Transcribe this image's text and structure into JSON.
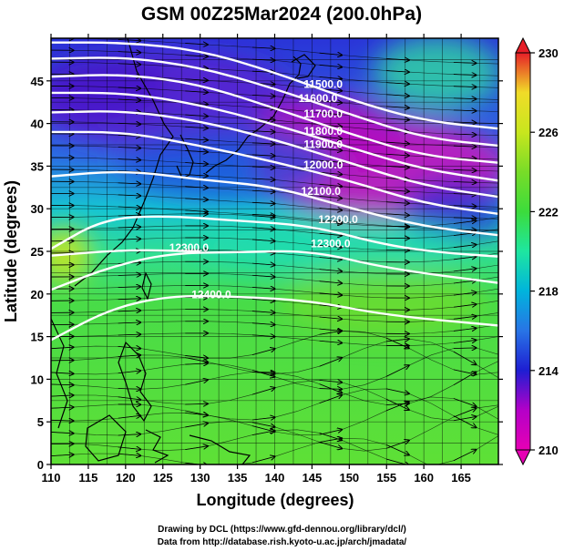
{
  "chart_data": {
    "type": "heatmap",
    "title": "GSM 00Z25Mar2024 (200.0hPa)",
    "xlabel": "Longitude (degrees)",
    "ylabel": "Latitude  (degrees)",
    "xlim": [
      110,
      170
    ],
    "ylim": [
      0,
      50
    ],
    "x_ticks": [
      110,
      115,
      120,
      125,
      130,
      135,
      140,
      145,
      150,
      155,
      160,
      165
    ],
    "y_ticks": [
      0,
      5,
      10,
      15,
      20,
      25,
      30,
      35,
      40,
      45
    ],
    "colorbar": {
      "min": 210,
      "max": 230,
      "ticks": [
        210,
        214,
        218,
        222,
        226,
        230
      ]
    },
    "contours": [
      {
        "level": "11500.0",
        "label_pos": [
          146.5,
          44.2
        ],
        "points": [
          [
            110,
            49.5
          ],
          [
            120,
            49.5
          ],
          [
            130,
            48.6
          ],
          [
            140,
            46
          ],
          [
            150,
            42.8
          ],
          [
            160,
            40.3
          ],
          [
            170,
            39.4
          ]
        ]
      },
      {
        "level": "11600.0",
        "label_pos": [
          145.8,
          42.5
        ],
        "points": [
          [
            110,
            47.6
          ],
          [
            120,
            47.8
          ],
          [
            130,
            46.6
          ],
          [
            140,
            44.1
          ],
          [
            150,
            41.1
          ],
          [
            160,
            38.3
          ],
          [
            170,
            37.4
          ]
        ]
      },
      {
        "level": "11700.0",
        "label_pos": [
          146.5,
          40.7
        ],
        "points": [
          [
            110,
            45.5
          ],
          [
            120,
            45.8
          ],
          [
            130,
            44.6
          ],
          [
            140,
            41.8
          ],
          [
            150,
            38.8
          ],
          [
            160,
            36.2
          ],
          [
            170,
            35.4
          ]
        ]
      },
      {
        "level": "11800.0",
        "label_pos": [
          146.5,
          38.7
        ],
        "points": [
          [
            110,
            43.6
          ],
          [
            120,
            43.6
          ],
          [
            130,
            42.2
          ],
          [
            140,
            39.9
          ],
          [
            150,
            37.2
          ],
          [
            160,
            34.6
          ],
          [
            170,
            33.3
          ]
        ]
      },
      {
        "level": "11900.0",
        "label_pos": [
          146.5,
          37.1
        ],
        "points": [
          [
            110,
            41.3
          ],
          [
            120,
            41.5
          ],
          [
            130,
            40.3
          ],
          [
            140,
            38.1
          ],
          [
            150,
            35.4
          ],
          [
            160,
            32.7
          ],
          [
            170,
            31.4
          ]
        ]
      },
      {
        "level": "12000.0",
        "label_pos": [
          146.5,
          34.7
        ],
        "points": [
          [
            110,
            39.0
          ],
          [
            120,
            39.0
          ],
          [
            130,
            37.4
          ],
          [
            140,
            35.5
          ],
          [
            150,
            33.3
          ],
          [
            160,
            30.6
          ],
          [
            170,
            29.4
          ]
        ]
      },
      {
        "level": "12100.0",
        "label_pos": [
          146.2,
          31.6
        ],
        "points": [
          [
            110,
            33.8
          ],
          [
            120,
            34.5
          ],
          [
            130,
            33.4
          ],
          [
            140,
            32.6
          ],
          [
            150,
            30.1
          ],
          [
            160,
            27.9
          ],
          [
            170,
            26.9
          ]
        ]
      },
      {
        "level": "12200.0",
        "label_pos": [
          148.5,
          28.3
        ],
        "points": [
          [
            110,
            25.3
          ],
          [
            117,
            28.8
          ],
          [
            125,
            29.2
          ],
          [
            135,
            28.6
          ],
          [
            145,
            28.0
          ],
          [
            155,
            25.7
          ],
          [
            163,
            24.8
          ],
          [
            170,
            24.4
          ]
        ]
      },
      {
        "level": "12300.0",
        "label_pos": [
          147.5,
          25.5
        ],
        "points": [
          [
            110,
            20.5
          ],
          [
            118,
            23.2
          ],
          [
            126,
            24.8
          ],
          [
            135,
            24.9
          ],
          [
            145,
            25.1
          ],
          [
            155,
            23.0
          ],
          [
            170,
            21.3
          ]
        ]
      },
      {
        "level": "12300.0",
        "label_pos": [
          128.5,
          25.0
        ],
        "points": [
          [
            110,
            24.5
          ],
          [
            120,
            25.2
          ],
          [
            130,
            25.0
          ]
        ]
      },
      {
        "level": "12400.0",
        "label_pos": [
          131.5,
          19.5
        ],
        "points": [
          [
            110,
            14.6
          ],
          [
            118,
            18.3
          ],
          [
            126,
            19.8
          ],
          [
            135,
            19.7
          ],
          [
            145,
            19.2
          ],
          [
            155,
            17.5
          ],
          [
            170,
            16.3
          ]
        ]
      }
    ]
  },
  "credits": {
    "line1": "Drawing by DCL (https://www.gfd-dennou.org/library/dcl/)",
    "line2": "Data from http://database.rish.kyoto-u.ac.jp/arch/jmadata/"
  },
  "colors": {
    "contour": "#ffffff",
    "colorbar_stops": [
      "#e600b4",
      "#b400c8",
      "#1e1ed2",
      "#2874e6",
      "#00b4dc",
      "#1ee6a0",
      "#3cdc3c",
      "#78dc28",
      "#c8e61e",
      "#f0dc28",
      "#f09628",
      "#e61e28"
    ]
  }
}
